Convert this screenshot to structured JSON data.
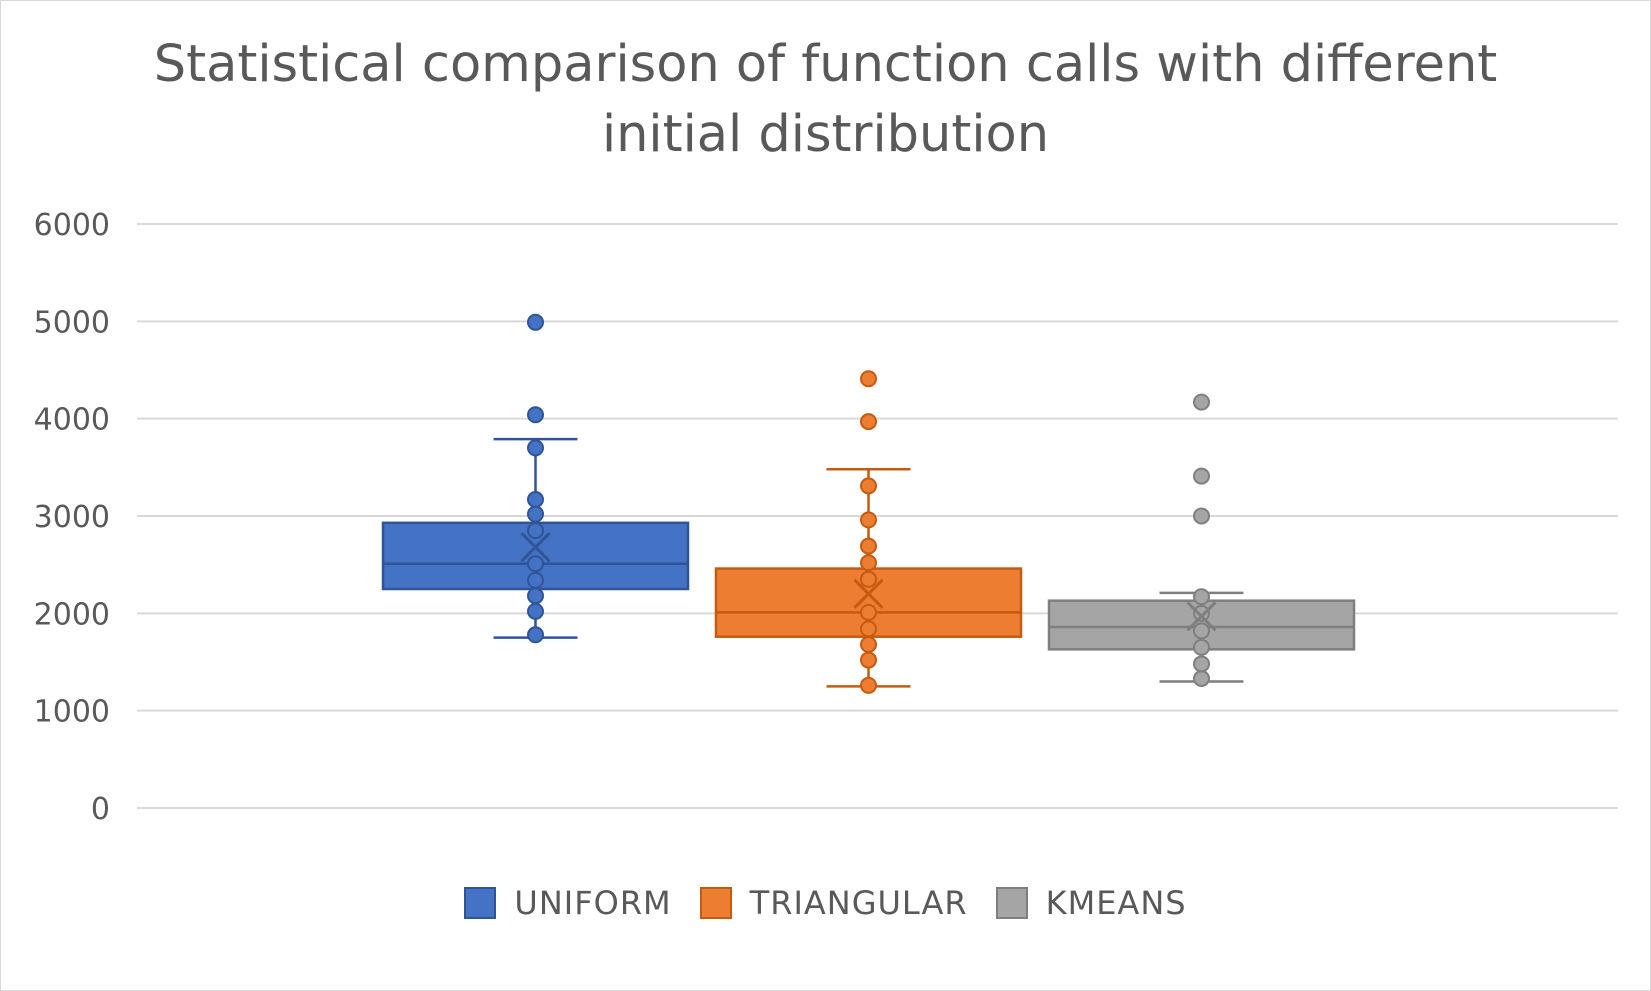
{
  "chart_data": {
    "type": "box",
    "title": "Statistical comparison of function calls with different initial distribution",
    "xlabel": "",
    "ylabel": "",
    "ylim": [
      0,
      6000
    ],
    "yticks": [
      "0",
      "1000",
      "2000",
      "3000",
      "4000",
      "5000",
      "6000"
    ],
    "grid": true,
    "legend_position": "bottom",
    "series": [
      {
        "name": "UNIFORM",
        "fill": "#4472c4",
        "stroke": "#2f5597",
        "q1": 2250,
        "median": 2510,
        "q3": 2930,
        "mean": 2680,
        "whisker_low": 1750,
        "whisker_high": 3790,
        "points": [
          1780,
          2020,
          2180,
          2340,
          2510,
          2850,
          3020,
          3170,
          3700,
          4040,
          4990
        ]
      },
      {
        "name": "TRIANGULAR",
        "fill": "#ed7d31",
        "stroke": "#c55a11",
        "q1": 1760,
        "median": 2010,
        "q3": 2460,
        "mean": 2200,
        "whisker_low": 1250,
        "whisker_high": 3480,
        "points": [
          1260,
          1520,
          1680,
          1840,
          2010,
          2350,
          2520,
          2690,
          2960,
          3310,
          3970,
          4410
        ]
      },
      {
        "name": "KMEANS",
        "fill": "#a5a5a5",
        "stroke": "#7f7f7f",
        "q1": 1630,
        "median": 1860,
        "q3": 2130,
        "mean": 1970,
        "whisker_low": 1300,
        "whisker_high": 2210,
        "points": [
          1330,
          1480,
          1650,
          1820,
          2000,
          2170,
          3000,
          3410,
          4170
        ]
      }
    ]
  }
}
